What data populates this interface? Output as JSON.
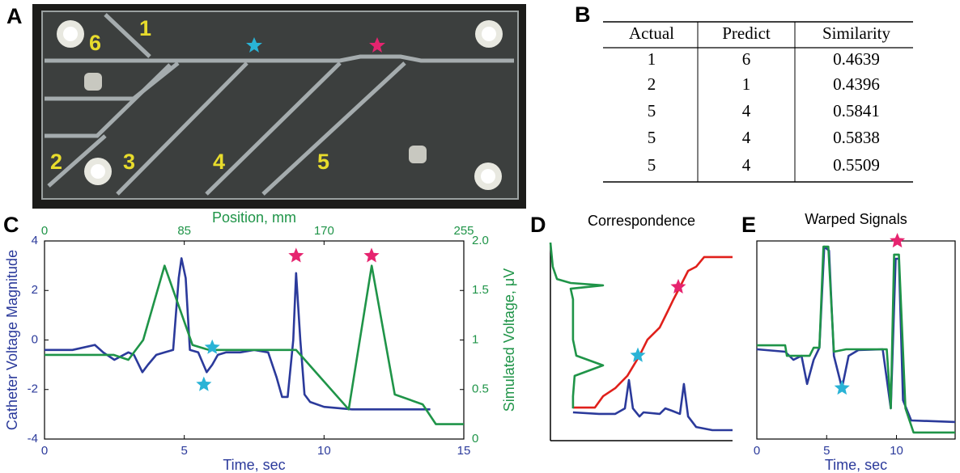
{
  "panel_labels": [
    "A",
    "B",
    "C",
    "D",
    "E"
  ],
  "photo": {
    "labels": [
      "1",
      "6",
      "2",
      "3",
      "4",
      "5"
    ]
  },
  "table": {
    "header": [
      "Actual",
      "Predict",
      "Similarity"
    ],
    "rows": [
      [
        "1",
        "6",
        "0.4639"
      ],
      [
        "2",
        "1",
        "0.4396"
      ],
      [
        "5",
        "4",
        "0.5841"
      ],
      [
        "5",
        "4",
        "0.5838"
      ],
      [
        "5",
        "4",
        "0.5509"
      ]
    ]
  },
  "chart_data": [
    {
      "type": "line",
      "box": true,
      "xlabel": "Time, sec",
      "ylabel": "Catheter Voltage Magnitude",
      "x2label": "Position, mm",
      "y2label": "Simulated Voltage, μV",
      "xlim": [
        0,
        15
      ],
      "xticks": [
        0,
        5,
        10,
        15
      ],
      "ylim": [
        -4,
        4
      ],
      "yticks": [
        -4,
        -2,
        0,
        2,
        4
      ],
      "x2lim": [
        0,
        255
      ],
      "x2ticks": [
        0,
        85,
        170,
        255
      ],
      "y2lim": [
        0,
        2
      ],
      "y2ticks": [
        0,
        0.5,
        1,
        1.5,
        {
          "value": 2,
          "label": "2.0"
        }
      ],
      "series": [
        {
          "name": "Catheter",
          "color": "#2b3a9b",
          "x": [
            0,
            1,
            1.8,
            2.1,
            2.5,
            3,
            3.2,
            3.5,
            3.7,
            4,
            4.3,
            4.6,
            4.8,
            4.9,
            5.05,
            5.2,
            5.5,
            5.8,
            6,
            6.2,
            6.5,
            7,
            7.5,
            8,
            8.3,
            8.5,
            8.7,
            8.9,
            9,
            9.15,
            9.3,
            9.5,
            10,
            11,
            12,
            13,
            13.8
          ],
          "values": [
            -0.4,
            -0.4,
            -0.2,
            -0.5,
            -0.8,
            -0.5,
            -0.6,
            -1.3,
            -1.0,
            -0.6,
            -0.5,
            -0.4,
            2.5,
            3.3,
            2.5,
            -0.4,
            -0.5,
            -1.3,
            -1.0,
            -0.6,
            -0.5,
            -0.5,
            -0.4,
            -0.5,
            -1.5,
            -2.3,
            -2.3,
            0,
            2.7,
            0,
            -2.2,
            -2.5,
            -2.7,
            -2.8,
            -2.8,
            -2.8,
            -2.8
          ]
        },
        {
          "name": "Simulated",
          "color": "#1f9448",
          "axis": "y2",
          "xaxis": "x2",
          "x": [
            0,
            42,
            51,
            60,
            73,
            90,
            100,
            153,
            185,
            199,
            213,
            230,
            238,
            255
          ],
          "values": [
            0.85,
            0.85,
            0.8,
            1.0,
            1.75,
            0.95,
            0.9,
            0.9,
            0.3,
            1.75,
            0.45,
            0.35,
            0.15,
            0.15
          ]
        }
      ],
      "markers": [
        {
          "x": 6,
          "y": -0.3,
          "color": "#29b3d6"
        },
        {
          "x": 5.7,
          "y": -1.8,
          "color": "#29b3d6"
        },
        {
          "x": 9,
          "y": 3.4,
          "color": "#e6246f"
        },
        {
          "x": 11.7,
          "y": 3.4,
          "color": "#e6246f"
        }
      ]
    },
    {
      "type": "line",
      "box": false,
      "title": "Correspondence",
      "xlim": [
        0,
        1
      ],
      "ylim": [
        0,
        1
      ],
      "series": [
        {
          "name": "Correspondence",
          "color": "#e0201b",
          "x": [
            0.124,
            0.244,
            0.289,
            0.356,
            0.422,
            0.489,
            0.533,
            0.6,
            0.644,
            0.676,
            0.711,
            0.756,
            0.8,
            0.844,
            1
          ],
          "values": [
            0.167,
            0.167,
            0.224,
            0.265,
            0.327,
            0.429,
            0.51,
            0.571,
            0.653,
            0.714,
            0.776,
            0.857,
            0.878,
            0.927,
            0.927
          ]
        },
        {
          "name": "Simulated",
          "color": "#1f9448",
          "x": [
            0,
            0.013,
            0.036,
            0.111,
            0.289,
            0.111,
            0.124,
            0.124,
            0.142,
            0.289,
            0.133,
            0.124,
            0.124
          ],
          "values": [
            1,
            0.878,
            0.816,
            0.796,
            0.784,
            0.767,
            0.714,
            0.51,
            0.429,
            0.38,
            0.327,
            0.224,
            0.163
          ]
        },
        {
          "name": "Catheter",
          "color": "#2b3a9b",
          "x": [
            0.124,
            0.267,
            0.356,
            0.409,
            0.431,
            0.453,
            0.489,
            0.511,
            0.6,
            0.631,
            0.667,
            0.711,
            0.733,
            0.756,
            0.8,
            0.889,
            1
          ],
          "values": [
            0.143,
            0.135,
            0.135,
            0.163,
            0.306,
            0.163,
            0.122,
            0.143,
            0.135,
            0.163,
            0.151,
            0.135,
            0.286,
            0.122,
            0.069,
            0.053,
            0.053
          ]
        }
      ],
      "markers": [
        {
          "x": 0.48,
          "y": 0.43,
          "color": "#29b3d6"
        },
        {
          "x": 0.702,
          "y": 0.776,
          "color": "#e6246f"
        }
      ]
    },
    {
      "type": "line",
      "box": true,
      "title": "Warped Signals",
      "xlabel": "Time, sec",
      "xlim": [
        0,
        14.2
      ],
      "xticks": [
        0,
        5,
        10
      ],
      "ylim": [
        0,
        1
      ],
      "series": [
        {
          "name": "Catheter",
          "color": "#2b3a9b",
          "x": [
            0,
            2.03,
            2.62,
            3.2,
            3.6,
            4.07,
            4.48,
            4.83,
            5.17,
            5.52,
            6.1,
            6.57,
            7.27,
            9.01,
            9.59,
            9.94,
            10.17,
            10.47,
            11.05,
            14.2
          ],
          "values": [
            0.453,
            0.441,
            0.4,
            0.42,
            0.278,
            0.4,
            0.461,
            0.971,
            0.951,
            0.42,
            0.257,
            0.42,
            0.449,
            0.453,
            0.155,
            0.91,
            0.91,
            0.196,
            0.094,
            0.086
          ]
        },
        {
          "name": "Simulated",
          "color": "#1f9448",
          "x": [
            0,
            2.03,
            2.15,
            3.78,
            4.07,
            4.48,
            4.77,
            5.12,
            5.52,
            6.4,
            9.3,
            9.59,
            9.83,
            10.17,
            10.64,
            11.22,
            14.2
          ],
          "values": [
            0.473,
            0.473,
            0.42,
            0.42,
            0.461,
            0.461,
            0.971,
            0.971,
            0.441,
            0.453,
            0.453,
            0.155,
            0.931,
            0.931,
            0.155,
            0.033,
            0.033
          ]
        }
      ],
      "markers": [
        {
          "x": 6.1,
          "y": 0.257,
          "color": "#29b3d6"
        },
        {
          "x": 10.06,
          "y": 1.0,
          "color": "#e6246f"
        }
      ]
    }
  ]
}
